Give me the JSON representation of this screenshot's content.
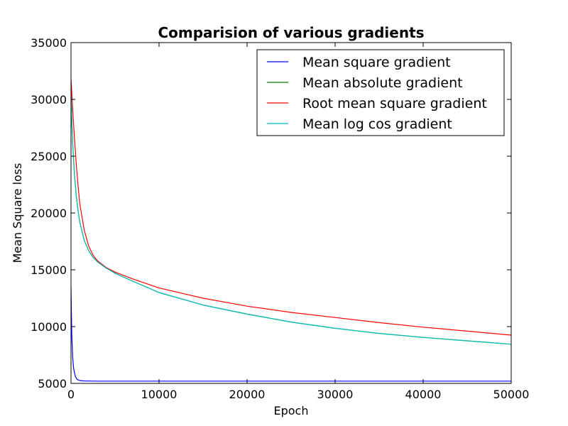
{
  "chart_data": {
    "type": "line",
    "title": "Comparision of various gradients",
    "xlabel": "Epoch",
    "ylabel": "Mean Square loss",
    "xlim": [
      0,
      50000
    ],
    "ylim": [
      5000,
      35000
    ],
    "xticks": [
      0,
      10000,
      20000,
      30000,
      40000,
      50000
    ],
    "yticks": [
      5000,
      10000,
      15000,
      20000,
      25000,
      30000,
      35000
    ],
    "xtick_labels": [
      "0",
      "10000",
      "20000",
      "30000",
      "40000",
      "50000"
    ],
    "ytick_labels": [
      "5000",
      "10000",
      "15000",
      "20000",
      "25000",
      "30000",
      "35000"
    ],
    "grid": false,
    "legend_position": "top-right",
    "series": [
      {
        "name": "Mean square gradient",
        "color": "#0000ff",
        "x": [
          0,
          50,
          100,
          200,
          300,
          500,
          700,
          1000,
          1500,
          2000,
          3000,
          5000,
          10000,
          20000,
          30000,
          40000,
          50000
        ],
        "y": [
          13500,
          11000,
          9000,
          7200,
          6300,
          5600,
          5350,
          5250,
          5220,
          5210,
          5200,
          5200,
          5200,
          5200,
          5200,
          5200,
          5200
        ]
      },
      {
        "name": "Mean absolute gradient",
        "color": "#008000",
        "x": [
          0,
          100,
          200,
          400,
          600,
          800,
          1000,
          1500,
          2000,
          2500,
          3000,
          4000,
          5000,
          7000,
          10000,
          15000,
          20000,
          25000,
          30000,
          35000,
          40000,
          45000,
          50000
        ],
        "y": [
          30500,
          28000,
          26000,
          23300,
          21500,
          20200,
          19200,
          17600,
          16700,
          16100,
          15700,
          15150,
          14700,
          14000,
          13000,
          11900,
          11100,
          10400,
          9850,
          9400,
          9050,
          8750,
          8450
        ]
      },
      {
        "name": "Root mean square gradient",
        "color": "#ff0000",
        "x": [
          0,
          100,
          200,
          400,
          600,
          800,
          1000,
          1500,
          2000,
          2500,
          3000,
          4000,
          5000,
          7000,
          10000,
          15000,
          20000,
          25000,
          30000,
          35000,
          40000,
          45000,
          50000
        ],
        "y": [
          31800,
          30500,
          29000,
          26500,
          24300,
          22400,
          20800,
          18500,
          17100,
          16300,
          15800,
          15200,
          14800,
          14200,
          13400,
          12500,
          11800,
          11250,
          10800,
          10350,
          9950,
          9600,
          9250
        ]
      },
      {
        "name": "Mean log cos gradient",
        "color": "#00bfbf",
        "x": [
          0,
          100,
          200,
          400,
          600,
          800,
          1000,
          1500,
          2000,
          2500,
          3000,
          4000,
          5000,
          7000,
          10000,
          15000,
          20000,
          25000,
          30000,
          35000,
          40000,
          45000,
          50000
        ],
        "y": [
          30500,
          28000,
          26000,
          23300,
          21500,
          20200,
          19200,
          17600,
          16700,
          16100,
          15700,
          15150,
          14700,
          14000,
          13000,
          11900,
          11100,
          10400,
          9850,
          9400,
          9050,
          8750,
          8450
        ]
      }
    ]
  }
}
